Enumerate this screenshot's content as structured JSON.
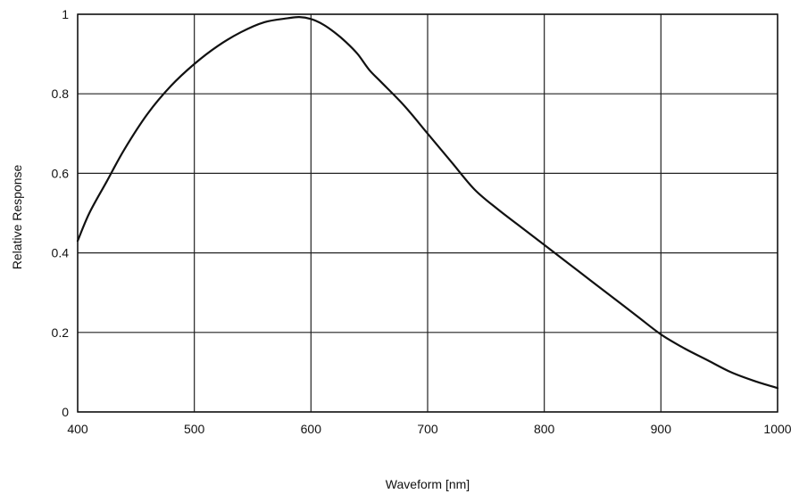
{
  "chart_data": {
    "type": "line",
    "title": "",
    "xlabel": "Waveform [nm]",
    "ylabel": "Relative Response",
    "xlim": [
      400,
      1000
    ],
    "ylim": [
      0,
      1
    ],
    "x_ticks": [
      400,
      500,
      600,
      700,
      800,
      900,
      1000
    ],
    "y_ticks": [
      0,
      0.2,
      0.4,
      0.6,
      0.8,
      1
    ],
    "x_tick_labels": [
      "400",
      "500",
      "600",
      "700",
      "800",
      "900",
      "1000"
    ],
    "y_tick_labels": [
      "0",
      "0.2",
      "0.4",
      "0.6",
      "0.8",
      "1"
    ],
    "grid": true,
    "series": [
      {
        "color": "#111111",
        "x": [
          400,
          410,
          425,
          440,
          460,
          480,
          500,
          520,
          540,
          560,
          580,
          590,
          600,
          610,
          620,
          630,
          640,
          650,
          660,
          680,
          700,
          720,
          740,
          760,
          780,
          800,
          820,
          840,
          860,
          880,
          900,
          920,
          940,
          960,
          980,
          1000
        ],
        "y": [
          0.43,
          0.5,
          0.58,
          0.66,
          0.75,
          0.82,
          0.875,
          0.92,
          0.955,
          0.98,
          0.99,
          0.993,
          0.988,
          0.975,
          0.955,
          0.93,
          0.9,
          0.86,
          0.83,
          0.77,
          0.7,
          0.63,
          0.56,
          0.51,
          0.465,
          0.42,
          0.375,
          0.33,
          0.285,
          0.24,
          0.195,
          0.16,
          0.13,
          0.1,
          0.078,
          0.06
        ]
      }
    ]
  }
}
